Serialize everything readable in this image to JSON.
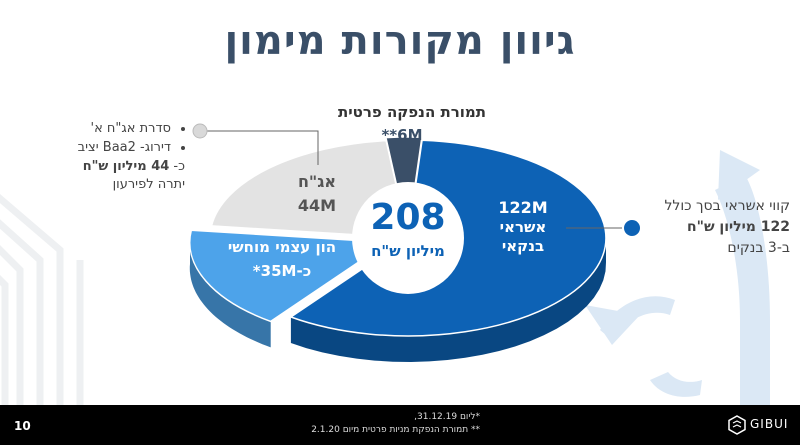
{
  "title": "גיוון מקורות מימון",
  "chart_data": {
    "type": "pie",
    "center_value": "208",
    "center_unit": "מיליון ש\"ח",
    "slices": [
      {
        "label": "אשראי בנקאי",
        "value_text": "122M",
        "value": 122,
        "color": "#0d62b5"
      },
      {
        "label": "הון עצמי מוחשי",
        "value_text": "כ-35M*",
        "value": 35,
        "color": "#4da3ea"
      },
      {
        "label": "אג\"ח",
        "value_text": "44M",
        "value": 44,
        "color": "#e3e3e3"
      },
      {
        "label": "תמורת הנפקה פרטית",
        "value_text": "6M**",
        "value": 6,
        "color": "#3a4f68"
      }
    ]
  },
  "left_note": {
    "items": [
      "סדרת אג\"ח א'",
      "דירוג- Baa2 יציב"
    ],
    "line3_prefix": "כ-",
    "line3_bold": "44 מיליון ש\"ח",
    "line4": "יתרה לפירעון"
  },
  "right_note": {
    "line1": "קווי אשראי בסך כולל",
    "line2_bold": "122 מיליון ש\"ח",
    "line3": "ב-3 בנקים"
  },
  "footer": {
    "page_number": "10",
    "note1": "*ליום 31.12.19,",
    "note2": "** תמורת הנפקת מניות פרטית מיום 2.1.20",
    "logo_text": "GIBUI"
  },
  "colors": {
    "title": "#3a4f68",
    "deco_arrow": "#dbe8f5",
    "deco_grid": "#eef0f2",
    "footer_bg": "#000000"
  }
}
